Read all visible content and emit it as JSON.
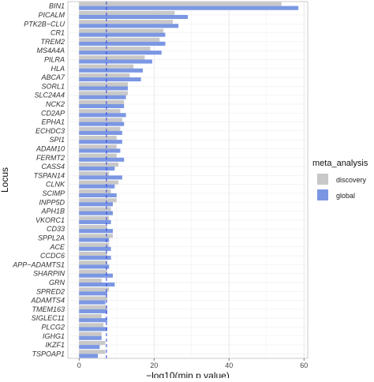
{
  "chart_data": {
    "type": "bar",
    "orientation": "horizontal",
    "xlabel": "−log10(min p value)",
    "ylabel": "Locus",
    "xlim": [
      -3,
      61
    ],
    "xticks": [
      0,
      20,
      40,
      60
    ],
    "grid": true,
    "legend_position": "right",
    "legend_title": "meta_analysis",
    "reference_line": {
      "x": 7.3,
      "color": "#3344dd",
      "style": "dashed"
    },
    "categories": [
      "BIN1",
      "PICALM",
      "PTK2B−CLU",
      "CR1",
      "TREM2",
      "MS4A4A",
      "PILRA",
      "HLA",
      "ABCA7",
      "SORL1",
      "SLC24A4",
      "NCK2",
      "CD2AP",
      "EPHA1",
      "ECHDC3",
      "SPI1",
      "ADAM10",
      "FERMT2",
      "CASS4",
      "TSPAN14",
      "CLNK",
      "SCIMP",
      "INPP5D",
      "APH1B",
      "VKORC1",
      "CD33",
      "SPPL2A",
      "ACE",
      "CCDC6",
      "APP−ADAMTS1",
      "SHARPIN",
      "GRN",
      "SPRED2",
      "ADAMTS4",
      "TMEM163",
      "SIGLEC11",
      "PLCG2",
      "IGHG1",
      "IKZF1",
      "TSPOAP1"
    ],
    "series": [
      {
        "name": "discovery",
        "color": "#c8c8c8",
        "values": [
          54,
          25.5,
          25,
          22.5,
          21.5,
          19,
          17.5,
          14.5,
          13.5,
          13,
          13,
          12,
          11,
          11.5,
          11,
          10,
          10,
          10,
          10.5,
          8,
          10.5,
          8.5,
          10,
          8.5,
          8,
          7.5,
          9,
          8,
          7.5,
          7.5,
          7.5,
          6,
          8,
          7.5,
          7.5,
          6,
          6.5,
          6,
          7,
          7
        ]
      },
      {
        "name": "global",
        "color": "#7b97e3",
        "values": [
          58.5,
          29,
          26.5,
          23,
          23,
          22,
          19.5,
          17,
          16.5,
          13,
          12.5,
          12,
          12.5,
          12,
          11.5,
          11.5,
          11,
          12,
          9.5,
          11.5,
          9.5,
          10,
          9,
          9,
          8.5,
          9,
          8,
          8.5,
          8.5,
          8,
          9,
          9.5,
          7.5,
          7,
          7.5,
          7.5,
          7.5,
          6,
          5.5,
          5
        ]
      }
    ]
  }
}
